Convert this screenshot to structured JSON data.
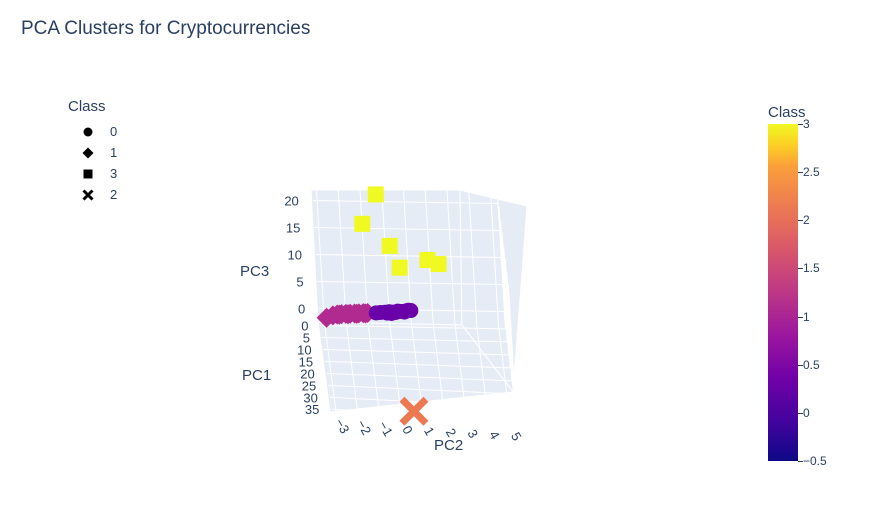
{
  "title": "PCA Clusters for Cryptocurrencies",
  "legend": {
    "title": "Class",
    "items": [
      {
        "label": "0",
        "symbol": "circle"
      },
      {
        "label": "1",
        "symbol": "diamond"
      },
      {
        "label": "3",
        "symbol": "square"
      },
      {
        "label": "2",
        "symbol": "x"
      }
    ]
  },
  "colorbar": {
    "title": "Class",
    "ticks": [
      "3",
      "2.5",
      "2",
      "1.5",
      "1",
      "0.5",
      "0",
      "−0.5"
    ],
    "range": [
      -0.5,
      3
    ],
    "colors": [
      "#0d0887",
      "#46039f",
      "#7201a8",
      "#9c179e",
      "#bd3786",
      "#d8576b",
      "#ed7953",
      "#fb9f3a",
      "#fdca26",
      "#f0f921"
    ]
  },
  "chart_data": {
    "type": "scatter",
    "title": "PCA Clusters for Cryptocurrencies",
    "axes": {
      "x": {
        "label": "PC2",
        "ticks": [
          "−3",
          "−2",
          "−1",
          "0",
          "1",
          "2",
          "3",
          "4",
          "5"
        ]
      },
      "y": {
        "label": "PC1",
        "ticks": [
          "0",
          "5",
          "10",
          "15",
          "20",
          "25",
          "30",
          "35"
        ]
      },
      "z": {
        "label": "PC3",
        "ticks": [
          "0",
          "5",
          "10",
          "15",
          "20"
        ]
      }
    },
    "series": [
      {
        "name": "0",
        "symbol": "circle",
        "color": "#6a00a8",
        "points": [
          [
            -0.6,
            -0.3,
            -0.1
          ],
          [
            -0.4,
            -0.3,
            0.0
          ],
          [
            -0.2,
            -0.2,
            0.1
          ],
          [
            0.0,
            -0.2,
            0.2
          ],
          [
            0.2,
            -0.3,
            0.1
          ],
          [
            0.4,
            -0.3,
            0.3
          ],
          [
            0.6,
            -0.2,
            0.3
          ],
          [
            0.8,
            -0.3,
            0.4
          ],
          [
            1.0,
            -0.2,
            0.5
          ],
          [
            0.1,
            -0.4,
            -0.2
          ],
          [
            0.3,
            -0.4,
            0.0
          ],
          [
            0.5,
            -0.4,
            0.2
          ],
          [
            0.7,
            -0.4,
            0.1
          ],
          [
            -0.1,
            -0.3,
            -0.1
          ],
          [
            0.9,
            -0.1,
            0.6
          ]
        ]
      },
      {
        "name": "1",
        "symbol": "diamond",
        "color": "#b12a90",
        "points": [
          [
            -2.6,
            -0.1,
            -0.6
          ],
          [
            -2.4,
            0.0,
            -0.4
          ],
          [
            -2.2,
            0.0,
            -0.3
          ],
          [
            -2.0,
            -0.1,
            -0.3
          ],
          [
            -1.8,
            0.0,
            -0.2
          ],
          [
            -1.6,
            -0.1,
            -0.2
          ],
          [
            -1.4,
            0.0,
            -0.1
          ],
          [
            -1.2,
            -0.1,
            -0.1
          ],
          [
            -1.0,
            0.0,
            0.0
          ],
          [
            -2.9,
            0.3,
            -0.9
          ],
          [
            -2.3,
            -0.2,
            -0.5
          ],
          [
            -1.9,
            -0.2,
            -0.4
          ],
          [
            -1.5,
            -0.2,
            -0.3
          ],
          [
            -1.1,
            -0.2,
            -0.2
          ]
        ]
      },
      {
        "name": "3",
        "symbol": "square",
        "color": "#f0f921",
        "points": [
          [
            -0.3,
            0.0,
            22.0
          ],
          [
            -1.0,
            0.0,
            16.5
          ],
          [
            0.2,
            0.0,
            12.5
          ],
          [
            1.9,
            0.0,
            10.0
          ],
          [
            2.4,
            0.0,
            9.3
          ],
          [
            0.6,
            0.0,
            8.5
          ]
        ]
      },
      {
        "name": "2",
        "symbol": "x",
        "color": "#ed7953",
        "points": [
          [
            0.6,
            35.0,
            -2.0
          ]
        ]
      }
    ]
  }
}
